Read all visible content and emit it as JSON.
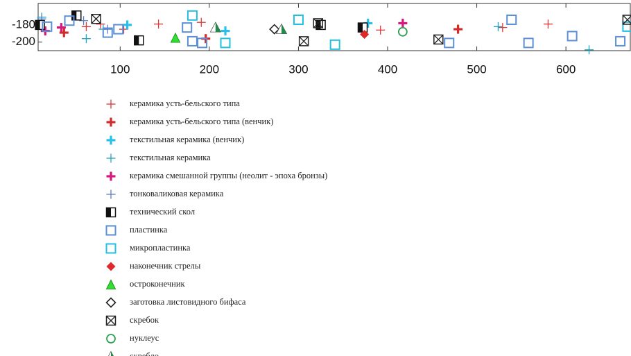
{
  "chart_data": {
    "type": "scatter",
    "xlim": [
      8,
      673
    ],
    "ylim": [
      -210,
      -155
    ],
    "xticks": [
      100,
      200,
      300,
      400,
      500,
      600
    ],
    "yticks": [
      -180,
      -200
    ],
    "series": [
      {
        "name": "керамика усть-бельского типа",
        "marker": "plus",
        "color": "#e03535",
        "x": [
          62,
          78,
          104,
          143,
          191,
          392,
          529,
          580
        ],
        "values": [
          -182,
          -179,
          -185,
          -179,
          -177,
          -186,
          -183,
          -179
        ]
      },
      {
        "name": "керамика усть-бельского типа (венчик)",
        "marker": "plus-bold",
        "color": "#d42a2a",
        "x": [
          37,
          196,
          479
        ],
        "values": [
          -189,
          -196,
          -185
        ]
      },
      {
        "name": "текстильная керамика (венчик)",
        "marker": "plus-bold",
        "color": "#28c0e8",
        "x": [
          108,
          218,
          378
        ],
        "values": [
          -180,
          -187,
          -178
        ]
      },
      {
        "name": "текстильная керамика",
        "marker": "plus",
        "color": "#1aa6c0",
        "x": [
          12,
          62,
          81,
          524,
          626
        ],
        "values": [
          -171,
          -196,
          -185,
          -182,
          -209
        ]
      },
      {
        "name": "керамика смешанной группы (неолит - эпоха бронзы)",
        "marker": "plus-bold",
        "color": "#d6187a",
        "x": [
          16,
          34,
          417
        ],
        "values": [
          -187,
          -183,
          -178
        ]
      },
      {
        "name": "тонковаликовая керамика",
        "marker": "plus",
        "color": "#5a7ec4",
        "x": [
          12,
          59,
          86
        ],
        "values": [
          -173,
          -175,
          -185
        ]
      },
      {
        "name": "технический скол",
        "marker": "half-square",
        "color": "#111111",
        "x": [
          10,
          51,
          121,
          325,
          372
        ],
        "values": [
          -180,
          -169,
          -198,
          -180,
          -183
        ]
      },
      {
        "name": "пластинка",
        "marker": "square",
        "color": "#5b8fd8",
        "x": [
          18,
          43,
          86,
          98,
          175,
          181,
          192,
          469,
          539,
          558,
          607,
          661
        ],
        "values": [
          -182,
          -175,
          -189,
          -185,
          -183,
          -199,
          -201,
          -201,
          -174,
          -201,
          -193,
          -199
        ]
      },
      {
        "name": "микропластинка",
        "marker": "square",
        "color": "#20c0e0",
        "x": [
          181,
          218,
          300,
          341,
          669
        ],
        "values": [
          -169,
          -201,
          -174,
          -203,
          -182
        ]
      },
      {
        "name": "наконечник стрелы",
        "marker": "diamond-filled",
        "color": "#e02828",
        "x": [
          374
        ],
        "values": [
          -191
        ]
      },
      {
        "name": "остроконечник",
        "marker": "triangle-filled",
        "color": "#33dd33",
        "x": [
          162
        ],
        "values": [
          -195
        ]
      },
      {
        "name": "заготовка листовидного бифаса",
        "marker": "diamond",
        "color": "#222222",
        "x": [
          273
        ],
        "values": [
          -185
        ]
      },
      {
        "name": "скребок",
        "marker": "cross-square",
        "color": "#222222",
        "x": [
          73,
          306,
          322,
          457,
          669
        ],
        "values": [
          -173,
          -199,
          -178,
          -197,
          -174
        ]
      },
      {
        "name": "нуклеус",
        "marker": "circle",
        "color": "#2e9e50",
        "x": [
          417
        ],
        "values": [
          -188
        ]
      },
      {
        "name": "скребло",
        "marker": "half-triangle",
        "color": "#1f8a4a",
        "x": [
          207,
          281
        ],
        "values": [
          -183,
          -185
        ]
      }
    ]
  }
}
